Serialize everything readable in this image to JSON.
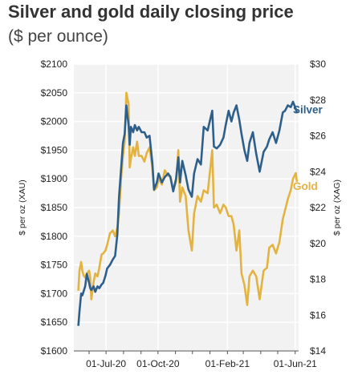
{
  "chart_data": {
    "type": "line",
    "title": "Silver and gold daily closing price",
    "subtitle": "($ per ounce)",
    "ylabel_left": "$ per oz (XAU)",
    "ylabel_right": "$ per oz (XAG)",
    "ylim_left": [
      1600,
      2100
    ],
    "ylim_right": [
      14,
      30
    ],
    "xlim": [
      "2020-05-05",
      "2021-06-07"
    ],
    "grid": true,
    "legend": "series labels at right end of lines",
    "y_ticks_left": [
      "$2100",
      "$2050",
      "$2000",
      "$1950",
      "$1900",
      "$1850",
      "$1800",
      "$1750",
      "$1700",
      "$1650",
      "$1600"
    ],
    "y_ticks_left_values": [
      2100,
      2050,
      2000,
      1950,
      1900,
      1850,
      1800,
      1750,
      1700,
      1650,
      1600
    ],
    "y_ticks_right": [
      "$30",
      "$28",
      "$26",
      "$24",
      "$22",
      "$20",
      "$18",
      "$16",
      "$14"
    ],
    "y_ticks_right_values": [
      30,
      28,
      26,
      24,
      22,
      20,
      18,
      16,
      14
    ],
    "x_ticks": [
      "01-Jul-20",
      "01-Oct-20",
      "01-Feb-21",
      "01-Jun-21"
    ],
    "x_tick_dates": [
      "2020-07-01",
      "2020-10-01",
      "2021-02-01",
      "2021-06-01"
    ],
    "colors": {
      "silver": "#2e5f8a",
      "gold": "#e3b341",
      "grid": "#ffffff",
      "plot_bg": "#f2f2f2"
    },
    "series": [
      {
        "name": "Gold",
        "axis": "left",
        "x": [
          "2020-05-13",
          "2020-05-15",
          "2020-05-18",
          "2020-05-20",
          "2020-05-22",
          "2020-05-25",
          "2020-05-28",
          "2020-06-01",
          "2020-06-03",
          "2020-06-05",
          "2020-06-09",
          "2020-06-12",
          "2020-06-16",
          "2020-06-19",
          "2020-06-23",
          "2020-06-26",
          "2020-06-30",
          "2020-07-03",
          "2020-07-08",
          "2020-07-13",
          "2020-07-17",
          "2020-07-21",
          "2020-07-24",
          "2020-07-28",
          "2020-07-31",
          "2020-08-03",
          "2020-08-06",
          "2020-08-10",
          "2020-08-12",
          "2020-08-14",
          "2020-08-18",
          "2020-08-21",
          "2020-08-25",
          "2020-08-28",
          "2020-09-02",
          "2020-09-07",
          "2020-09-11",
          "2020-09-16",
          "2020-09-21",
          "2020-09-24",
          "2020-09-29",
          "2020-10-02",
          "2020-10-08",
          "2020-10-13",
          "2020-10-19",
          "2020-10-23",
          "2020-10-28",
          "2020-11-02",
          "2020-11-06",
          "2020-11-09",
          "2020-11-13",
          "2020-11-19",
          "2020-11-24",
          "2020-11-30",
          "2020-12-04",
          "2020-12-10",
          "2020-12-16",
          "2020-12-21",
          "2020-12-28",
          "2021-01-05",
          "2021-01-08",
          "2021-01-13",
          "2021-01-19",
          "2021-01-25",
          "2021-01-29",
          "2021-02-03",
          "2021-02-08",
          "2021-02-12",
          "2021-02-17",
          "2021-02-22",
          "2021-02-26",
          "2021-03-03",
          "2021-03-08",
          "2021-03-12",
          "2021-03-18",
          "2021-03-24",
          "2021-03-30",
          "2021-04-06",
          "2021-04-12",
          "2021-04-16",
          "2021-04-22",
          "2021-04-28",
          "2021-05-04",
          "2021-05-10",
          "2021-05-14",
          "2021-05-19",
          "2021-05-24",
          "2021-05-28",
          "2021-06-02",
          "2021-06-04"
        ],
        "values": [
          1705,
          1740,
          1755,
          1740,
          1732,
          1728,
          1735,
          1740,
          1728,
          1690,
          1720,
          1735,
          1730,
          1745,
          1768,
          1770,
          1775,
          1785,
          1805,
          1810,
          1800,
          1815,
          1840,
          1905,
          1940,
          1965,
          2050,
          2030,
          1920,
          1935,
          1955,
          1940,
          1965,
          1940,
          1940,
          1930,
          1945,
          1955,
          1920,
          1880,
          1885,
          1900,
          1890,
          1915,
          1905,
          1905,
          1880,
          1895,
          1950,
          1860,
          1885,
          1870,
          1810,
          1775,
          1840,
          1870,
          1860,
          1880,
          1875,
          1950,
          1850,
          1855,
          1840,
          1855,
          1850,
          1835,
          1835,
          1820,
          1775,
          1810,
          1735,
          1715,
          1680,
          1730,
          1740,
          1730,
          1690,
          1740,
          1745,
          1780,
          1785,
          1770,
          1790,
          1830,
          1845,
          1865,
          1880,
          1900,
          1910,
          1895
        ]
      },
      {
        "name": "Silver",
        "axis": "right",
        "x": [
          "2020-05-13",
          "2020-05-15",
          "2020-05-18",
          "2020-05-20",
          "2020-05-22",
          "2020-05-25",
          "2020-05-28",
          "2020-06-01",
          "2020-06-03",
          "2020-06-05",
          "2020-06-09",
          "2020-06-12",
          "2020-06-16",
          "2020-06-19",
          "2020-06-23",
          "2020-06-26",
          "2020-06-30",
          "2020-07-03",
          "2020-07-08",
          "2020-07-13",
          "2020-07-17",
          "2020-07-21",
          "2020-07-24",
          "2020-07-28",
          "2020-07-31",
          "2020-08-03",
          "2020-08-06",
          "2020-08-10",
          "2020-08-12",
          "2020-08-14",
          "2020-08-18",
          "2020-08-21",
          "2020-08-25",
          "2020-08-28",
          "2020-09-02",
          "2020-09-07",
          "2020-09-11",
          "2020-09-16",
          "2020-09-21",
          "2020-09-24",
          "2020-09-29",
          "2020-10-02",
          "2020-10-08",
          "2020-10-13",
          "2020-10-19",
          "2020-10-23",
          "2020-10-28",
          "2020-11-02",
          "2020-11-06",
          "2020-11-09",
          "2020-11-13",
          "2020-11-19",
          "2020-11-24",
          "2020-11-30",
          "2020-12-04",
          "2020-12-10",
          "2020-12-16",
          "2020-12-21",
          "2020-12-28",
          "2021-01-05",
          "2021-01-08",
          "2021-01-13",
          "2021-01-19",
          "2021-01-25",
          "2021-01-29",
          "2021-02-03",
          "2021-02-08",
          "2021-02-12",
          "2021-02-17",
          "2021-02-22",
          "2021-02-26",
          "2021-03-03",
          "2021-03-08",
          "2021-03-12",
          "2021-03-18",
          "2021-03-24",
          "2021-03-30",
          "2021-04-06",
          "2021-04-12",
          "2021-04-16",
          "2021-04-22",
          "2021-04-28",
          "2021-05-04",
          "2021-05-10",
          "2021-05-14",
          "2021-05-19",
          "2021-05-24",
          "2021-05-28",
          "2021-06-02",
          "2021-06-04"
        ],
        "values": [
          15.4,
          16.2,
          17.2,
          17.1,
          17.3,
          17.6,
          18.3,
          17.8,
          17.5,
          17.4,
          17.6,
          17.3,
          17.6,
          17.5,
          17.7,
          17.8,
          18.2,
          18.6,
          18.8,
          19.1,
          19.3,
          20.5,
          22.6,
          24.3,
          25.6,
          26.1,
          27.7,
          26.6,
          25.5,
          26.5,
          26.2,
          26.6,
          26.3,
          26.5,
          26.2,
          26.2,
          25.9,
          26.0,
          24.5,
          23.0,
          23.4,
          23.9,
          23.4,
          23.7,
          23.9,
          23.7,
          22.9,
          23.6,
          24.8,
          23.4,
          24.6,
          23.8,
          23.0,
          22.6,
          23.9,
          24.7,
          24.4,
          26.5,
          26.3,
          27.4,
          25.4,
          25.3,
          25.5,
          25.9,
          26.6,
          27.4,
          26.8,
          27.3,
          27.7,
          26.9,
          26.1,
          25.2,
          24.6,
          25.6,
          26.2,
          25.0,
          24.0,
          25.1,
          25.4,
          25.8,
          26.2,
          25.6,
          26.3,
          27.3,
          27.4,
          27.7,
          27.6,
          27.9,
          27.5,
          27.3
        ]
      }
    ]
  }
}
